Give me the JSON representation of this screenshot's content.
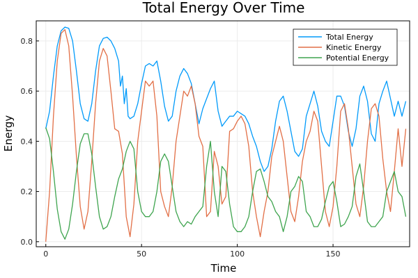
{
  "chart_data": {
    "type": "line",
    "title": "Total Energy Over Time",
    "xlabel": "Time",
    "ylabel": "Energy",
    "xlim": [
      -5,
      190
    ],
    "ylim": [
      -0.02,
      0.88
    ],
    "xticks": [
      0,
      50,
      100,
      150
    ],
    "yticks": [
      0.0,
      0.2,
      0.4,
      0.6,
      0.8
    ],
    "grid": true,
    "legend": "top-right",
    "series": [
      {
        "name": "Total Energy",
        "color": "#009AFA",
        "x": [
          0,
          2,
          4,
          6,
          8,
          10,
          12,
          14,
          16,
          18,
          20,
          22,
          24,
          26,
          28,
          30,
          32,
          34,
          36,
          38,
          39,
          40,
          41,
          42,
          43,
          44,
          46,
          48,
          50,
          52,
          54,
          56,
          58,
          60,
          62,
          64,
          66,
          68,
          70,
          72,
          74,
          76,
          78,
          80,
          82,
          84,
          86,
          88,
          90,
          92,
          94,
          96,
          98,
          100,
          102,
          104,
          106,
          108,
          110,
          112,
          114,
          116,
          118,
          120,
          122,
          124,
          126,
          128,
          130,
          132,
          134,
          136,
          138,
          140,
          142,
          144,
          146,
          148,
          150,
          152,
          154,
          156,
          158,
          160,
          162,
          164,
          166,
          168,
          170,
          172,
          174,
          176,
          178,
          180,
          182,
          184,
          186,
          188
        ],
        "y": [
          0.45,
          0.52,
          0.66,
          0.78,
          0.84,
          0.855,
          0.85,
          0.8,
          0.68,
          0.55,
          0.49,
          0.48,
          0.55,
          0.68,
          0.78,
          0.81,
          0.815,
          0.8,
          0.77,
          0.72,
          0.62,
          0.66,
          0.55,
          0.61,
          0.5,
          0.49,
          0.5,
          0.55,
          0.63,
          0.7,
          0.71,
          0.7,
          0.72,
          0.64,
          0.54,
          0.48,
          0.5,
          0.6,
          0.66,
          0.69,
          0.67,
          0.63,
          0.55,
          0.47,
          0.53,
          0.57,
          0.61,
          0.64,
          0.52,
          0.46,
          0.48,
          0.5,
          0.5,
          0.52,
          0.51,
          0.5,
          0.47,
          0.42,
          0.38,
          0.32,
          0.28,
          0.3,
          0.37,
          0.48,
          0.56,
          0.58,
          0.52,
          0.44,
          0.36,
          0.34,
          0.37,
          0.5,
          0.55,
          0.6,
          0.54,
          0.44,
          0.4,
          0.38,
          0.48,
          0.58,
          0.58,
          0.54,
          0.44,
          0.38,
          0.45,
          0.58,
          0.62,
          0.56,
          0.43,
          0.4,
          0.55,
          0.6,
          0.64,
          0.57,
          0.5,
          0.56,
          0.5,
          0.56
        ]
      },
      {
        "name": "Kinetic Energy",
        "color": "#E26F46",
        "x": [
          0,
          2,
          4,
          6,
          8,
          10,
          12,
          14,
          16,
          18,
          20,
          22,
          24,
          26,
          28,
          30,
          32,
          34,
          36,
          38,
          40,
          42,
          44,
          46,
          48,
          50,
          52,
          54,
          56,
          58,
          60,
          62,
          64,
          66,
          68,
          70,
          72,
          74,
          76,
          78,
          80,
          82,
          84,
          86,
          88,
          90,
          92,
          94,
          96,
          98,
          100,
          102,
          104,
          106,
          108,
          110,
          112,
          114,
          116,
          118,
          120,
          122,
          124,
          126,
          128,
          130,
          132,
          134,
          136,
          138,
          140,
          142,
          144,
          146,
          148,
          150,
          152,
          154,
          156,
          158,
          160,
          162,
          164,
          166,
          168,
          170,
          172,
          174,
          176,
          178,
          180,
          182,
          184,
          186,
          188
        ],
        "y": [
          0.0,
          0.2,
          0.5,
          0.72,
          0.83,
          0.845,
          0.78,
          0.58,
          0.34,
          0.14,
          0.05,
          0.12,
          0.32,
          0.55,
          0.72,
          0.77,
          0.74,
          0.6,
          0.45,
          0.44,
          0.35,
          0.1,
          0.02,
          0.15,
          0.4,
          0.52,
          0.64,
          0.62,
          0.64,
          0.5,
          0.2,
          0.14,
          0.1,
          0.22,
          0.4,
          0.5,
          0.6,
          0.58,
          0.62,
          0.55,
          0.42,
          0.38,
          0.1,
          0.12,
          0.36,
          0.3,
          0.15,
          0.18,
          0.44,
          0.45,
          0.48,
          0.5,
          0.47,
          0.38,
          0.2,
          0.1,
          0.02,
          0.12,
          0.2,
          0.34,
          0.4,
          0.46,
          0.4,
          0.26,
          0.12,
          0.08,
          0.18,
          0.32,
          0.4,
          0.44,
          0.52,
          0.48,
          0.3,
          0.12,
          0.06,
          0.14,
          0.3,
          0.52,
          0.55,
          0.45,
          0.3,
          0.15,
          0.1,
          0.22,
          0.4,
          0.53,
          0.55,
          0.5,
          0.33,
          0.2,
          0.12,
          0.28,
          0.45,
          0.3,
          0.45
        ]
      },
      {
        "name": "Potential Energy",
        "color": "#3EA44E",
        "x": [
          0,
          2,
          4,
          6,
          8,
          10,
          12,
          14,
          16,
          18,
          20,
          22,
          24,
          26,
          28,
          30,
          32,
          34,
          36,
          38,
          40,
          42,
          44,
          46,
          48,
          50,
          52,
          54,
          56,
          58,
          60,
          62,
          64,
          66,
          68,
          70,
          72,
          74,
          76,
          78,
          80,
          82,
          84,
          86,
          88,
          90,
          92,
          94,
          96,
          98,
          100,
          102,
          104,
          106,
          108,
          110,
          112,
          114,
          116,
          118,
          120,
          122,
          124,
          126,
          128,
          130,
          132,
          134,
          136,
          138,
          140,
          142,
          144,
          146,
          148,
          150,
          152,
          154,
          156,
          158,
          160,
          162,
          164,
          166,
          168,
          170,
          172,
          174,
          176,
          178,
          180,
          182,
          184,
          186,
          188
        ],
        "y": [
          0.455,
          0.41,
          0.28,
          0.13,
          0.04,
          0.01,
          0.05,
          0.15,
          0.28,
          0.39,
          0.43,
          0.43,
          0.35,
          0.22,
          0.1,
          0.05,
          0.06,
          0.1,
          0.18,
          0.25,
          0.29,
          0.36,
          0.4,
          0.37,
          0.2,
          0.12,
          0.1,
          0.1,
          0.12,
          0.2,
          0.32,
          0.35,
          0.32,
          0.22,
          0.12,
          0.08,
          0.06,
          0.08,
          0.07,
          0.1,
          0.12,
          0.14,
          0.3,
          0.4,
          0.2,
          0.1,
          0.3,
          0.28,
          0.15,
          0.06,
          0.04,
          0.04,
          0.06,
          0.1,
          0.2,
          0.28,
          0.29,
          0.24,
          0.18,
          0.16,
          0.12,
          0.1,
          0.04,
          0.1,
          0.2,
          0.22,
          0.26,
          0.24,
          0.12,
          0.1,
          0.06,
          0.06,
          0.09,
          0.16,
          0.22,
          0.24,
          0.16,
          0.06,
          0.07,
          0.1,
          0.14,
          0.26,
          0.31,
          0.2,
          0.08,
          0.06,
          0.06,
          0.08,
          0.1,
          0.2,
          0.24,
          0.28,
          0.2,
          0.18,
          0.1
        ]
      }
    ]
  }
}
